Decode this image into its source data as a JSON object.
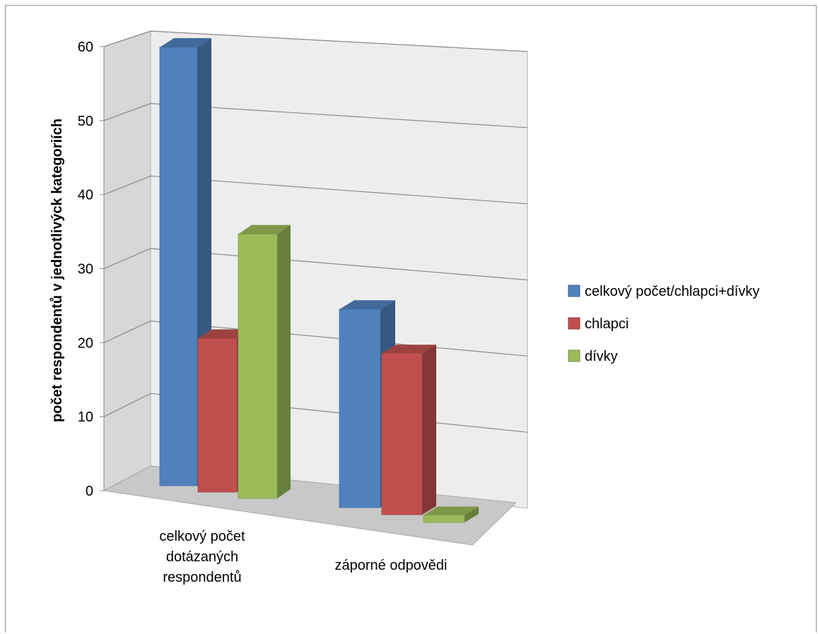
{
  "chart_data": {
    "type": "bar",
    "subtype": "3d-clustered-column",
    "title": "",
    "xlabel": "",
    "ylabel": "počet respondentů  v jednotlivýck kategoriích",
    "ylim": [
      0,
      60
    ],
    "yticks": [
      "0",
      "10",
      "20",
      "30",
      "40",
      "50",
      "60"
    ],
    "grid": true,
    "legend_position": "right",
    "categories": [
      [
        "celkový počet",
        "dotázaných",
        "respondentů"
      ],
      [
        "záporné odpovědi"
      ]
    ],
    "series": [
      {
        "name": "celkový počet/chlapci+dívky",
        "color": "#4f81bd",
        "values": [
          60,
          27
        ]
      },
      {
        "name": "chlapci",
        "color": "#c0504d",
        "values": [
          21,
          22
        ]
      },
      {
        "name": "dívky",
        "color": "#9bbb59",
        "values": [
          36,
          1
        ]
      }
    ]
  }
}
